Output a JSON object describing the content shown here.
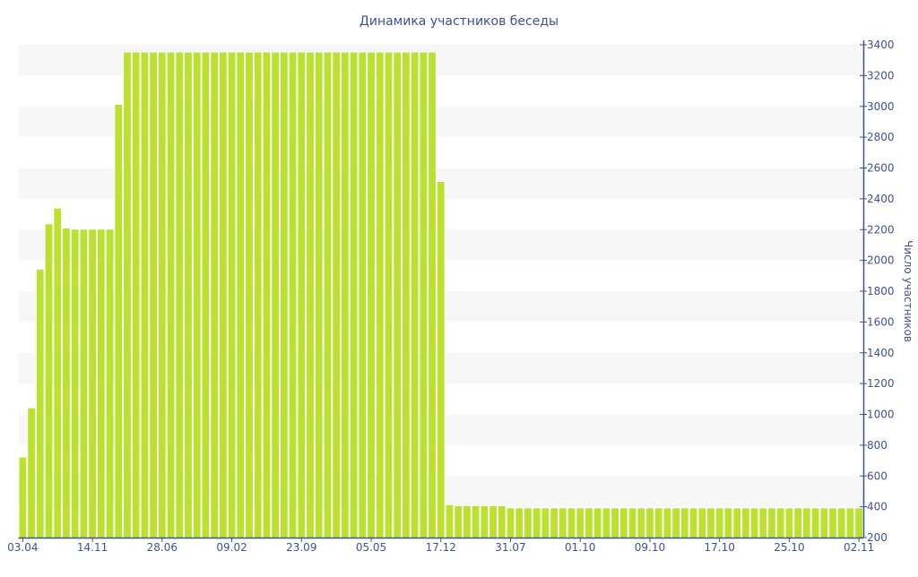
{
  "chart_data": {
    "type": "bar",
    "title": "Динамика участников беседы",
    "xlabel": "",
    "ylabel": "Число участников",
    "y_axis_side": "right",
    "ylim": [
      200,
      3400
    ],
    "yticks": [
      200,
      400,
      600,
      800,
      1000,
      1200,
      1400,
      1600,
      1800,
      2000,
      2200,
      2400,
      2600,
      2800,
      3000,
      3200,
      3400
    ],
    "grid": "alternating horizontal bands",
    "xtick_labels": [
      "03.04",
      "14.11",
      "28.06",
      "09.02",
      "23.09",
      "05.05",
      "17.12",
      "31.07",
      "01.10",
      "09.10",
      "17.10",
      "25.10",
      "02.11"
    ],
    "xtick_every_n_bars": 8,
    "bar_color": "#bbe02e",
    "axis_color": "#3d5199",
    "band_color": "#f7f7f7",
    "values": [
      720,
      1040,
      1940,
      2235,
      2337,
      2207,
      2200,
      2200,
      2200,
      2200,
      2200,
      3010,
      3350,
      3350,
      3350,
      3350,
      3350,
      3350,
      3350,
      3350,
      3350,
      3350,
      3350,
      3350,
      3350,
      3350,
      3350,
      3350,
      3350,
      3350,
      3350,
      3350,
      3350,
      3350,
      3350,
      3350,
      3350,
      3350,
      3350,
      3350,
      3350,
      3350,
      3350,
      3350,
      3350,
      3350,
      3350,
      3350,
      2510,
      410,
      404,
      404,
      404,
      404,
      404,
      404,
      390,
      390,
      390,
      390,
      390,
      390,
      390,
      390,
      390,
      390,
      390,
      390,
      390,
      390,
      390,
      390,
      390,
      390,
      390,
      390,
      390,
      390,
      390,
      390,
      390,
      390,
      390,
      390,
      390,
      390,
      390,
      390,
      390,
      390,
      390,
      390,
      390,
      390,
      390,
      390,
      390
    ]
  }
}
